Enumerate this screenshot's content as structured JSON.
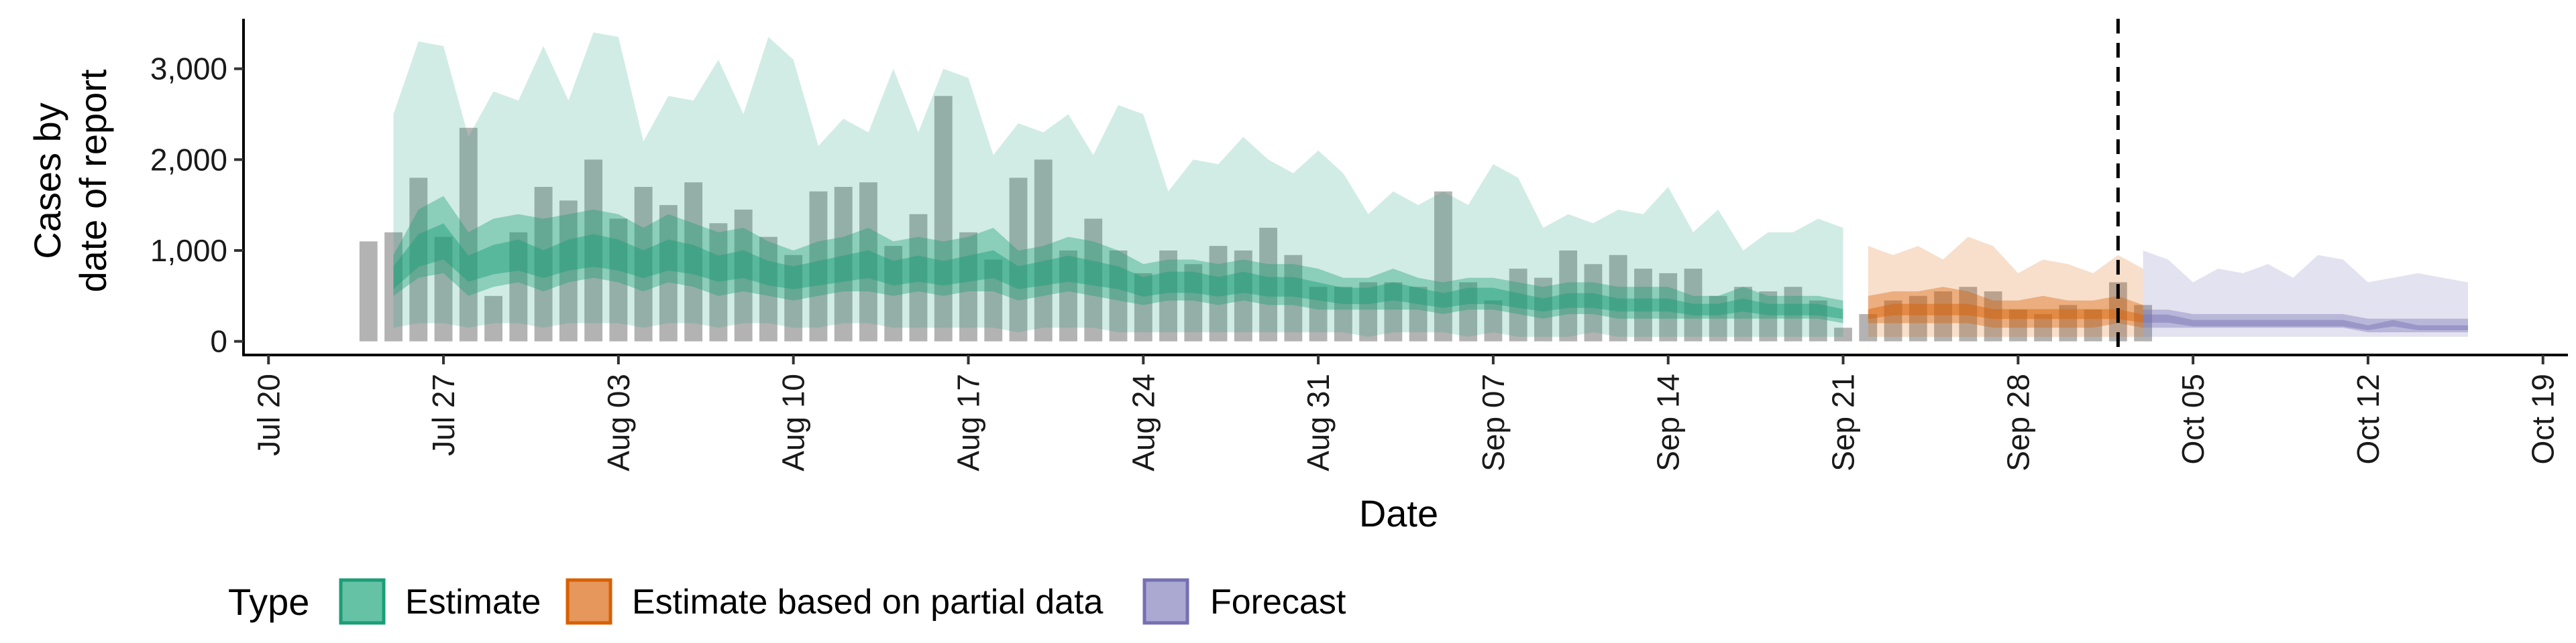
{
  "chart_data": {
    "type": "area",
    "xlabel": "Date",
    "ylabel_lines": [
      "Cases by",
      "date of report"
    ],
    "ylim": [
      -150,
      3550
    ],
    "yticks": [
      0,
      1000,
      2000,
      3000
    ],
    "ytick_labels": [
      "0",
      "1,000",
      "2,000",
      "3,000"
    ],
    "x_range": [
      "2020-07-19",
      "2020-10-20"
    ],
    "xticks": [
      "2020-07-20",
      "2020-07-27",
      "2020-08-03",
      "2020-08-10",
      "2020-08-17",
      "2020-08-24",
      "2020-08-31",
      "2020-09-07",
      "2020-09-14",
      "2020-09-21",
      "2020-09-28",
      "2020-10-05",
      "2020-10-12",
      "2020-10-19"
    ],
    "xtick_labels": [
      "Jul 20",
      "Jul 27",
      "Aug 03",
      "Aug 10",
      "Aug 17",
      "Aug 24",
      "Aug 31",
      "Sep 07",
      "Sep 14",
      "Sep 21",
      "Sep 28",
      "Oct 05",
      "Oct 12",
      "Oct 19"
    ],
    "forecast_date": "2020-10-02",
    "legend": {
      "title": "Type",
      "position": "bottom",
      "items": [
        {
          "name": "Estimate",
          "fill": "#66C2A5",
          "stroke": "#1B9E77"
        },
        {
          "name": "Estimate based on partial data",
          "fill": "#E5975C",
          "stroke": "#D95F02"
        },
        {
          "name": "Forecast",
          "fill": "#ABA8D2",
          "stroke": "#7570B3"
        }
      ]
    },
    "bars": {
      "start": "2020-07-24",
      "color": "#A9A9A9",
      "values": [
        1100,
        1200,
        1800,
        1150,
        2350,
        500,
        1200,
        1700,
        1550,
        2000,
        1350,
        1700,
        1500,
        1750,
        1300,
        1450,
        1150,
        950,
        1650,
        1700,
        1750,
        1050,
        1400,
        2700,
        1200,
        900,
        1800,
        2000,
        1000,
        1350,
        1000,
        750,
        1000,
        850,
        1050,
        1000,
        1250,
        950,
        600,
        600,
        650,
        650,
        600,
        1650,
        650,
        450,
        800,
        700,
        1000,
        850,
        950,
        800,
        750,
        800,
        500,
        600,
        550,
        600,
        450,
        150,
        300,
        450,
        500,
        550,
        600,
        550,
        350,
        300,
        400,
        350,
        650,
        400
      ]
    },
    "series": [
      {
        "name": "Estimate",
        "start": "2020-07-25",
        "fill": "#1B9E77",
        "median": [
          700,
          1000,
          1100,
          800,
          900,
          950,
          850,
          950,
          1000,
          950,
          850,
          950,
          900,
          800,
          850,
          750,
          700,
          750,
          800,
          850,
          750,
          800,
          750,
          800,
          850,
          700,
          750,
          800,
          750,
          700,
          600,
          650,
          650,
          600,
          650,
          600,
          600,
          550,
          500,
          500,
          550,
          500,
          450,
          500,
          500,
          450,
          400,
          450,
          450,
          400,
          400,
          400,
          350,
          350,
          400,
          350,
          350,
          350,
          300
        ],
        "band50": [
          [
            500,
            950
          ],
          [
            700,
            1450
          ],
          [
            750,
            1600
          ],
          [
            500,
            1200
          ],
          [
            600,
            1350
          ],
          [
            650,
            1400
          ],
          [
            550,
            1350
          ],
          [
            650,
            1400
          ],
          [
            700,
            1450
          ],
          [
            650,
            1400
          ],
          [
            550,
            1250
          ],
          [
            650,
            1400
          ],
          [
            600,
            1300
          ],
          [
            500,
            1200
          ],
          [
            550,
            1250
          ],
          [
            500,
            1100
          ],
          [
            450,
            1000
          ],
          [
            500,
            1100
          ],
          [
            550,
            1150
          ],
          [
            550,
            1250
          ],
          [
            500,
            1100
          ],
          [
            550,
            1150
          ],
          [
            500,
            1100
          ],
          [
            550,
            1150
          ],
          [
            550,
            1250
          ],
          [
            450,
            1000
          ],
          [
            500,
            1050
          ],
          [
            550,
            1150
          ],
          [
            500,
            1100
          ],
          [
            450,
            1000
          ],
          [
            400,
            850
          ],
          [
            450,
            900
          ],
          [
            450,
            900
          ],
          [
            400,
            850
          ],
          [
            450,
            900
          ],
          [
            400,
            850
          ],
          [
            400,
            850
          ],
          [
            350,
            800
          ],
          [
            350,
            700
          ],
          [
            350,
            700
          ],
          [
            350,
            800
          ],
          [
            350,
            700
          ],
          [
            300,
            650
          ],
          [
            350,
            700
          ],
          [
            350,
            700
          ],
          [
            300,
            650
          ],
          [
            250,
            600
          ],
          [
            300,
            650
          ],
          [
            300,
            650
          ],
          [
            250,
            600
          ],
          [
            250,
            600
          ],
          [
            250,
            600
          ],
          [
            250,
            500
          ],
          [
            250,
            500
          ],
          [
            250,
            600
          ],
          [
            250,
            500
          ],
          [
            250,
            500
          ],
          [
            250,
            500
          ],
          [
            200,
            450
          ]
        ],
        "band90": [
          [
            150,
            2500
          ],
          [
            200,
            3300
          ],
          [
            200,
            3250
          ],
          [
            150,
            2250
          ],
          [
            200,
            2750
          ],
          [
            200,
            2650
          ],
          [
            150,
            3250
          ],
          [
            200,
            2650
          ],
          [
            200,
            3400
          ],
          [
            200,
            3350
          ],
          [
            150,
            2200
          ],
          [
            200,
            2700
          ],
          [
            200,
            2650
          ],
          [
            150,
            3100
          ],
          [
            200,
            2500
          ],
          [
            200,
            3350
          ],
          [
            150,
            3100
          ],
          [
            150,
            2150
          ],
          [
            200,
            2450
          ],
          [
            200,
            2300
          ],
          [
            150,
            3000
          ],
          [
            150,
            2300
          ],
          [
            150,
            3000
          ],
          [
            150,
            2900
          ],
          [
            150,
            2050
          ],
          [
            100,
            2400
          ],
          [
            150,
            2300
          ],
          [
            150,
            2500
          ],
          [
            150,
            2050
          ],
          [
            100,
            2600
          ],
          [
            100,
            2500
          ],
          [
            100,
            1650
          ],
          [
            100,
            2000
          ],
          [
            100,
            1950
          ],
          [
            100,
            2250
          ],
          [
            100,
            2000
          ],
          [
            100,
            1850
          ],
          [
            100,
            2100
          ],
          [
            100,
            1850
          ],
          [
            50,
            1400
          ],
          [
            100,
            1650
          ],
          [
            100,
            1500
          ],
          [
            100,
            1650
          ],
          [
            50,
            1500
          ],
          [
            100,
            1950
          ],
          [
            50,
            1800
          ],
          [
            50,
            1250
          ],
          [
            50,
            1400
          ],
          [
            100,
            1300
          ],
          [
            50,
            1450
          ],
          [
            50,
            1400
          ],
          [
            50,
            1700
          ],
          [
            50,
            1200
          ],
          [
            50,
            1450
          ],
          [
            50,
            1000
          ],
          [
            50,
            1200
          ],
          [
            50,
            1200
          ],
          [
            50,
            1350
          ],
          [
            50,
            1250
          ]
        ]
      },
      {
        "name": "Estimate based on partial data",
        "start": "2020-09-22",
        "fill": "#D95F02",
        "median": [
          300,
          350,
          350,
          350,
          350,
          300,
          300,
          300,
          300,
          300,
          300,
          250
        ],
        "band50": [
          [
            200,
            500
          ],
          [
            200,
            550
          ],
          [
            200,
            550
          ],
          [
            200,
            600
          ],
          [
            200,
            550
          ],
          [
            150,
            450
          ],
          [
            150,
            450
          ],
          [
            150,
            500
          ],
          [
            150,
            450
          ],
          [
            150,
            450
          ],
          [
            200,
            500
          ],
          [
            150,
            400
          ]
        ],
        "band90": [
          [
            50,
            1050
          ],
          [
            50,
            950
          ],
          [
            50,
            1050
          ],
          [
            50,
            900
          ],
          [
            50,
            1150
          ],
          [
            50,
            1050
          ],
          [
            50,
            750
          ],
          [
            50,
            900
          ],
          [
            50,
            850
          ],
          [
            50,
            750
          ],
          [
            50,
            950
          ],
          [
            50,
            800
          ]
        ]
      },
      {
        "name": "Forecast",
        "start": "2020-10-03",
        "fill": "#7570B3",
        "median": [
          250,
          250,
          200,
          200,
          200,
          200,
          200,
          200,
          200,
          150,
          200,
          150,
          150,
          150
        ],
        "band50": [
          [
            150,
            350
          ],
          [
            150,
            350
          ],
          [
            150,
            300
          ],
          [
            150,
            300
          ],
          [
            150,
            300
          ],
          [
            150,
            300
          ],
          [
            150,
            300
          ],
          [
            150,
            300
          ],
          [
            150,
            300
          ],
          [
            100,
            250
          ],
          [
            100,
            250
          ],
          [
            100,
            250
          ],
          [
            100,
            250
          ],
          [
            100,
            250
          ]
        ],
        "band90": [
          [
            50,
            1000
          ],
          [
            50,
            900
          ],
          [
            50,
            650
          ],
          [
            50,
            800
          ],
          [
            50,
            750
          ],
          [
            50,
            850
          ],
          [
            50,
            700
          ],
          [
            50,
            950
          ],
          [
            50,
            900
          ],
          [
            50,
            650
          ],
          [
            50,
            700
          ],
          [
            50,
            750
          ],
          [
            50,
            700
          ],
          [
            50,
            650
          ]
        ]
      }
    ]
  }
}
